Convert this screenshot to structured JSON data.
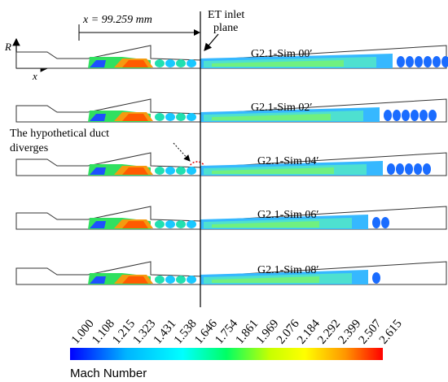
{
  "annotations": {
    "position_label": "x = 99.259 mm",
    "inlet_line1": "ET inlet",
    "inlet_line2": "plane",
    "note_line1": "The hypothetical duct",
    "note_line2": "diverges"
  },
  "axes": {
    "radial": "R",
    "axial": "x"
  },
  "panels": [
    {
      "label": "G2.1-Sim 00′"
    },
    {
      "label": "G2.1-Sim 02′"
    },
    {
      "label": "G2.1-Sim 04′"
    },
    {
      "label": "G2.1-Sim 06′"
    },
    {
      "label": "G2.1-Sim 08′"
    }
  ],
  "colorbar": {
    "title": "Mach Number",
    "ticks": [
      "1.000",
      "1.108",
      "1.215",
      "1.323",
      "1.431",
      "1.538",
      "1.646",
      "1.754",
      "1.861",
      "1.969",
      "2.076",
      "2.184",
      "2.292",
      "2.399",
      "2.507",
      "2.615"
    ],
    "colors": [
      "#0000ff",
      "#00b4ff",
      "#00ffff",
      "#00ff64",
      "#c8ff00",
      "#ffff00",
      "#ff9600",
      "#ff0000"
    ]
  }
}
